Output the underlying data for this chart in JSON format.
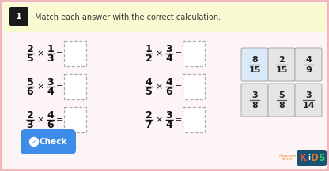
{
  "title": "Match each answer with the correct calculation.",
  "question_number": "1",
  "background_outer": "#f0b8b8",
  "background_inner": "#fdf5f5",
  "header_bg": "#fafad2",
  "question_num_bg": "#1a1a1a",
  "question_num_color": "#ffffff",
  "equations_left": [
    {
      "n1": "2",
      "d1": "5",
      "n2": "1",
      "d2": "3"
    },
    {
      "n1": "5",
      "d1": "6",
      "n2": "3",
      "d2": "4"
    },
    {
      "n1": "2",
      "d1": "3",
      "n2": "4",
      "d2": "6"
    }
  ],
  "equations_right": [
    {
      "n1": "1",
      "d1": "2",
      "n2": "3",
      "d2": "4"
    },
    {
      "n1": "4",
      "d1": "5",
      "n2": "4",
      "d2": "6"
    },
    {
      "n1": "2",
      "d1": "7",
      "n2": "3",
      "d2": "4"
    }
  ],
  "answer_cards_row1": [
    {
      "num": "8",
      "den": "15",
      "highlighted": true
    },
    {
      "num": "2",
      "den": "15",
      "highlighted": false
    },
    {
      "num": "4",
      "den": "9",
      "highlighted": false
    }
  ],
  "answer_cards_row2": [
    {
      "num": "3",
      "den": "8",
      "highlighted": false
    },
    {
      "num": "5",
      "den": "8",
      "highlighted": false
    },
    {
      "num": "3",
      "den": "14",
      "highlighted": false
    }
  ],
  "check_btn_color": "#3d8de8",
  "check_btn_text": "Check"
}
